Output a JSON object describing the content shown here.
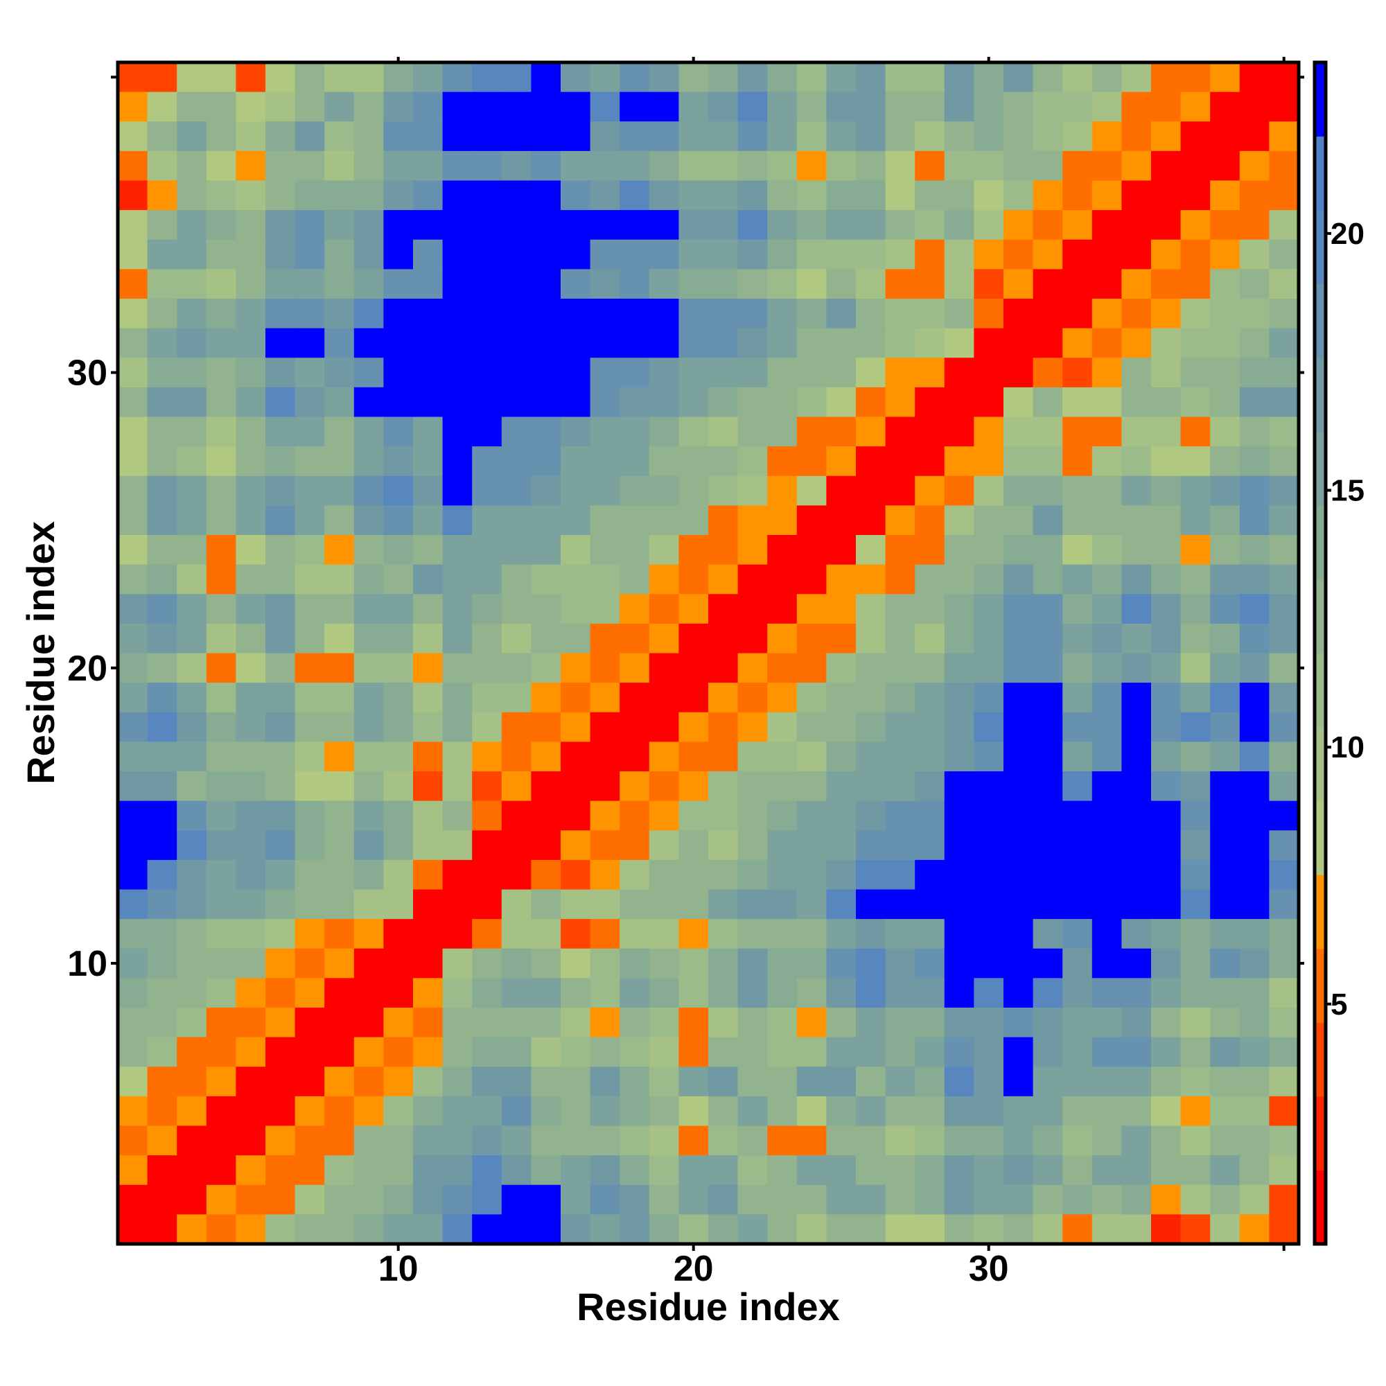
{
  "chart_data": {
    "type": "heatmap",
    "title": "",
    "xlabel": "Residue index",
    "ylabel": "Residue index",
    "xlim": [
      1,
      40
    ],
    "ylim": [
      1,
      40
    ],
    "x_ticks": [
      10,
      20,
      30
    ],
    "y_ticks": [
      10,
      20,
      30
    ],
    "colorbar": {
      "range": [
        0.33,
        23.33
      ],
      "ticks": [
        5,
        10,
        15,
        20
      ],
      "bin_colors": [
        "#FF0000",
        "#FF2200",
        "#FF4500",
        "#FF6E00",
        "#FF9400",
        "#B0C880",
        "#A5C185",
        "#9BBB8A",
        "#92B38E",
        "#88AB94",
        "#7BA29C",
        "#7099A4",
        "#6692AF",
        "#5887BF",
        "#5080C8",
        "#0000FF"
      ]
    },
    "cell_encoding": "each character is a hex bin index 0-F into colorbar bins; value = bin midpoint in data units",
    "rows_top_to_bottom_residue_40_to_1": [
      [
        "2255258669",
        "ACDDFBACB8",
        "9B97AB77B9",
        "B868633400"
      ],
      [
        "4588568A8B",
        "CFFFFFDFFA",
        "BDA8BB88B9",
        "8776334000"
      ],
      [
        "58A869B78C",
        "CFFFFFBCCA",
        "ACA7AB8689",
        "8764340004"
      ],
      [
        "368548868A",
        "ACCBCAAA97",
        "7874785377",
        "8833400043"
      ],
      [
        "148768999B",
        "CFFFFCBDBA",
        "AB87995885",
        "7434000433"
      ],
      [
        "58A98BCABF",
        "FFFFFFFFFB",
        "BDA9AA8796",
        "4340004336"
      ],
      [
        "5AA88BC9BF",
        "CFFFFFCCCA",
        "AB97776364",
        "3400043468"
      ],
      [
        "37768AA9AC",
        "CFFFFCBCA9",
        "9875863362",
        "4000433786"
      ],
      [
        "58A9ACCBDF",
        "FFFFFFFFFC",
        "CCA9B87783",
        "0004346778"
      ],
      [
        "8ABAAFFCFF",
        "FFFFFFFFFC",
        "CBA8887650",
        "004346778A"
      ],
      [
        "69989BABCF",
        "FFFFFFCCBA",
        "AA88854400",
        "0324868899"
      ],
      [
        "8BB8ADBAFF",
        "FFFFFFCBBA",
        "9887534000",
        "58558878BB"
      ],
      [
        "58868AA8AC",
        "AFFCCBAA97",
        "6883340004",
        "6633663687"
      ],
      [
        "58758988AB",
        "AFCCCAAA88",
        "8733400044",
        "7736755898"
      ],
      [
        "8BA8ABAACD",
        "BFCCBAA998",
        "7645000436",
        "9988A9ABCB"
      ],
      [
        "8BA8ACA8BC",
        "ADAAAA8888",
        "3440004368",
        "8B8888A9CA"
      ],
      [
        "5883587489",
        "8AAAA68863",
        "3400053388",
        "9957884898"
      ],
      [
        "8963886698",
        "BAA8777843",
        "4000443889",
        "B9A9B98BBA"
      ],
      [
        "BCA8AB88AA",
        "8A98877434",
        "000446889A",
        "CC9ADB9CDB"
      ],
      [
        "ABA68B8599",
        "6A86883340",
        "004336869A",
        "CCABAB89CB"
      ],
      [
        "9863583377",
        "4888743400",
        "04337888AA",
        "CC9ABA6AB8"
      ],
      [
        "ACA7AA77A9",
        "6977434000",
        "4347889ABC",
        "FFACFCADFB"
      ],
      [
        "CDB9AB88A9",
        "7963340004",
        "346889AABD",
        "FFCCFCDCFC"
      ],
      [
        "AAA8886477",
        "3643400043",
        "37769AAABC",
        "FFACFA9AD9"
      ],
      [
        "BB89985586",
        "2624000434",
        "7888AAABFF",
        "FFDFFCBFFA"
      ],
      [
        "FFCABB98A9",
        "6830004347",
        "789AABCCFF",
        "FFFFFFCFFF"
      ],
      [
        "FFDBBC98B9",
        "6600043368",
        "68AAACCCFF",
        "FFFFFFBFFC"
      ],
      [
        "FDBABA8896",
        "3000324688",
        "89AABDDFFF",
        "FFFFFFCFFD"
      ],
      [
        "DCBAA98866",
        "0006866888",
        "ABBADFFFFF",
        "FFFFFFDFFC"
      ],
      [
        "9987764340",
        "0036623664",
        "7888ABAAFF",
        "FBCFBA9AA9"
      ],
      [
        "A988843400",
        "0689857987",
        "9B99CDBCFF",
        "FFBFFB9CB9"
      ],
      [
        "9887434000",
        "479AA87A97",
        "9B98BDBBFD",
        "FDBCCA9996"
      ],
      [
        "8873340004",
        "3888864873",
        "68748A99BB",
        "CBAAB86897"
      ],
      [
        "8733400043",
        "4899678763",
        "8877AA9ACB",
        "FBACCA8BA9"
      ],
      [
        "5334000434",
        "79BB88B97A",
        "B88BB8A9DB",
        "FAAAA87886"
      ],
      [
        "4340004347",
        "9AAC98A985",
        "8A859A88BB",
        "AA88854772"
      ],
      [
        "3400043388",
        "AABA888763",
        "7833886799",
        "A978A86887"
      ],
      [
        "4000433788",
        "BBDB9AB97A",
        "A78AA889BA",
        "BA8AA88A86"
      ],
      [
        "0004336889",
        "BCDFFACB8A",
        "B888AA89BA",
        "A898946862"
      ],
      [
        "004347889A",
        "ADFFFBAB97",
        "9A86885587",
        "8636612642"
      ]
    ]
  }
}
